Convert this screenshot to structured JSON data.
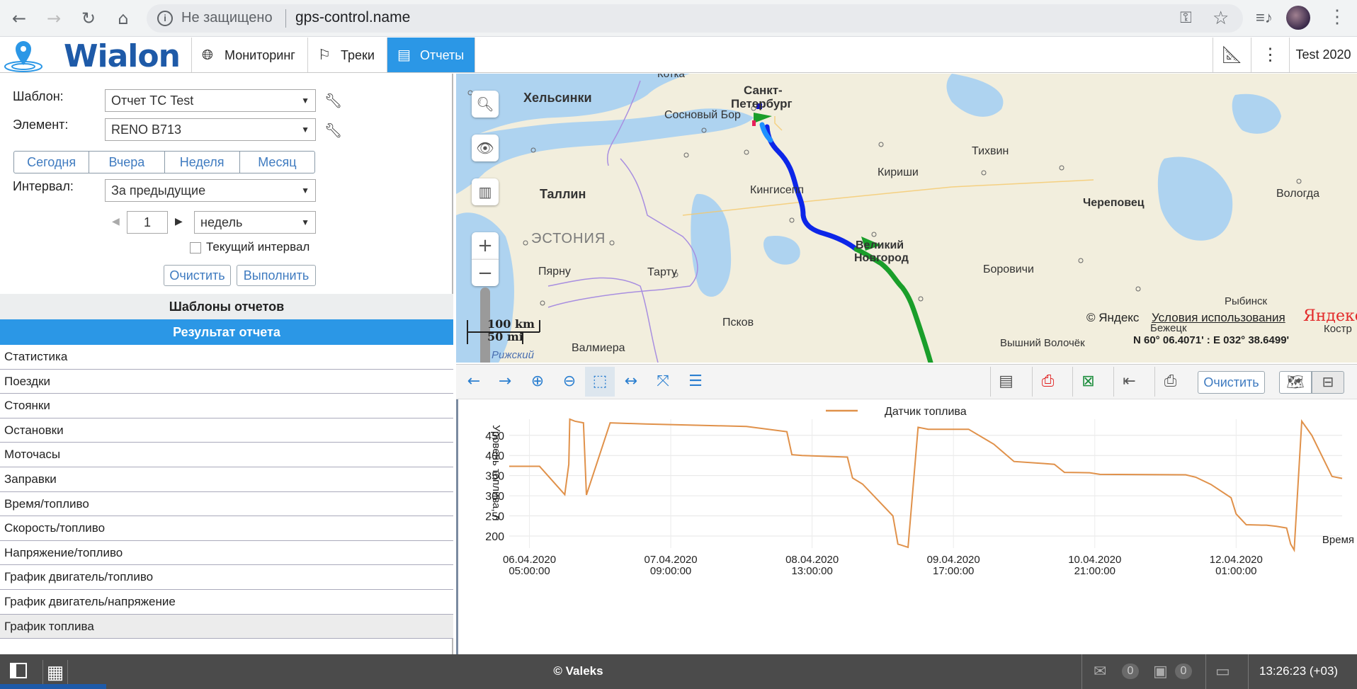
{
  "browser": {
    "security_text": "Не защищено",
    "url": "gps-control.name"
  },
  "app": {
    "logo_text": "Wialon",
    "nav": [
      {
        "label": "Мониторинг",
        "icon": "globe-icon"
      },
      {
        "label": "Треки",
        "icon": "checkered-flag-icon"
      },
      {
        "label": "Отчеты",
        "icon": "report-icon"
      }
    ],
    "user": "Test 2020"
  },
  "report_form": {
    "template_label": "Шаблон:",
    "template_value": "Отчет ТС Test",
    "element_label": "Элемент:",
    "element_value": "RENO B713",
    "periods": [
      "Сегодня",
      "Вчера",
      "Неделя",
      "Месяц"
    ],
    "interval_label": "Интервал:",
    "interval_value": "За предыдущие",
    "count_value": "1",
    "unit_value": "недель",
    "current_interval_label": "Текущий интервал",
    "clear_label": "Очистить",
    "execute_label": "Выполнить"
  },
  "templates_header": "Шаблоны отчетов",
  "result_header": "Результат отчета",
  "result_items": [
    "Статистика",
    "Поездки",
    "Стоянки",
    "Остановки",
    "Моточасы",
    "Заправки",
    "Время/топливо",
    "Скорость/топливо",
    "Напряжение/топливо",
    "График двигатель/топливо",
    "График двигатель/напряжение",
    "График топлива"
  ],
  "map": {
    "labels": {
      "helsinki": "Хельсинки",
      "spb1": "Санкт-",
      "spb2": "Петербург",
      "sosnovy_bor": "Сосновый Бор",
      "tikhvin": "Тихвин",
      "kirishi": "Кириши",
      "tallinn": "Таллин",
      "kingisepp": "Кингисепп",
      "cherepovets": "Череповец",
      "vologda": "Вологда",
      "estonia": "ЭСТОНИЯ",
      "vnovgorod1": "Великий",
      "vnovgorod2": "Новгород",
      "borovichi": "Боровичи",
      "parnu": "Пярну",
      "tartu": "Тарту",
      "rybinsk": "Рыбинск",
      "pskov": "Псков",
      "bezhetsk": "Бежецк",
      "valmiera": "Валмиера",
      "vyshny": "Вышний Волочёк",
      "riga": "Рижский",
      "kotka": "Котка",
      "kostroma": "Костр"
    },
    "scale_km": "100 km",
    "scale_mi": "50 mi",
    "copyright": "© Яндекс",
    "terms_link": "Условия использования",
    "brand": "Яндекс",
    "coords": "N 60° 06.4071' : E 032° 38.6499'"
  },
  "chart_toolbar": {
    "clear_label": "Очистить"
  },
  "chart_data": {
    "type": "line",
    "title": "",
    "ylabel": "Уровень топлива, л",
    "xlabel": "Время",
    "ylim": [
      170,
      490
    ],
    "yticks": [
      200,
      250,
      300,
      350,
      400,
      450
    ],
    "x_tick_labels": [
      {
        "date": "06.04.2020",
        "time": "05:00:00"
      },
      {
        "date": "07.04.2020",
        "time": "09:00:00"
      },
      {
        "date": "08.04.2020",
        "time": "13:00:00"
      },
      {
        "date": "09.04.2020",
        "time": "17:00:00"
      },
      {
        "date": "10.04.2020",
        "time": "21:00:00"
      },
      {
        "date": "12.04.2020",
        "time": "01:00:00"
      }
    ],
    "x_unit": "hours from 06.04.2020 00:00",
    "xlim": [
      1,
      166
    ],
    "color": "#e0914a",
    "series": [
      {
        "name": "Датчик топлива",
        "x": [
          1,
          5,
          7,
          12,
          12.8,
          13,
          14,
          15.7,
          16.3,
          21,
          28,
          38,
          48,
          56,
          57,
          59,
          63,
          68,
          69,
          71,
          77,
          78,
          80,
          82,
          84,
          84.7,
          85.3,
          92,
          97,
          101,
          107,
          109,
          111,
          116,
          118,
          135,
          137,
          140,
          144,
          145,
          147,
          150,
          151,
          153,
          155,
          155.8,
          156.5,
          158,
          160,
          164,
          166
        ],
        "y": [
          373,
          373,
          373,
          303,
          378,
          490,
          485,
          481,
          302,
          481,
          478,
          475,
          472,
          459,
          402,
          400,
          398,
          396,
          344,
          329,
          250,
          180,
          172,
          470,
          465,
          465,
          465,
          465,
          428,
          385,
          380,
          378,
          358,
          357,
          353,
          352,
          346,
          328,
          295,
          255,
          228,
          227,
          227,
          224,
          220,
          180,
          165,
          485,
          450,
          348,
          343
        ]
      }
    ]
  },
  "status_bar": {
    "copyright": "© Valeks",
    "msg_count": "0",
    "img_count": "0",
    "time": "13:26:23 (+03)"
  }
}
